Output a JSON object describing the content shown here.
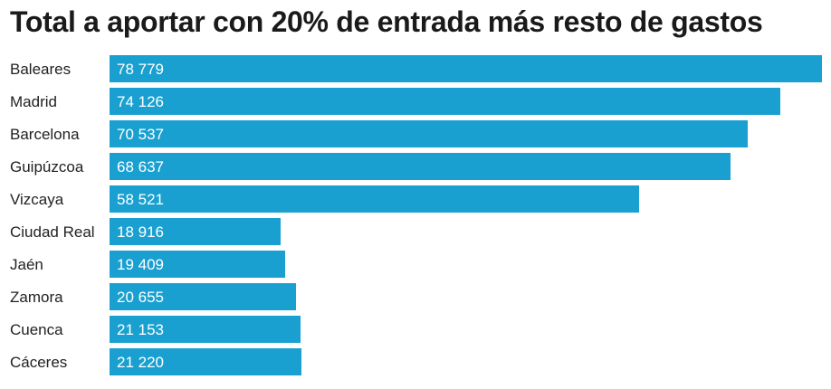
{
  "chart_data": {
    "type": "bar",
    "orientation": "horizontal",
    "title": "Total a aportar con 20% de entrada más resto de gastos",
    "categories": [
      "Baleares",
      "Madrid",
      "Barcelona",
      "Guipúzcoa",
      "Vizcaya",
      "Ciudad Real",
      "Jaén",
      "Zamora",
      "Cuenca",
      "Cáceres"
    ],
    "values": [
      78779,
      74126,
      70537,
      68637,
      58521,
      18916,
      19409,
      20655,
      21153,
      21220
    ],
    "value_labels": [
      "78 779",
      "74 126",
      "70 537",
      "68 637",
      "58 521",
      "18 916",
      "19 409",
      "20 655",
      "21 153",
      "21 220"
    ],
    "xlim": [
      0,
      78779
    ],
    "grid": false,
    "bar_color": "#1aa0d0"
  }
}
